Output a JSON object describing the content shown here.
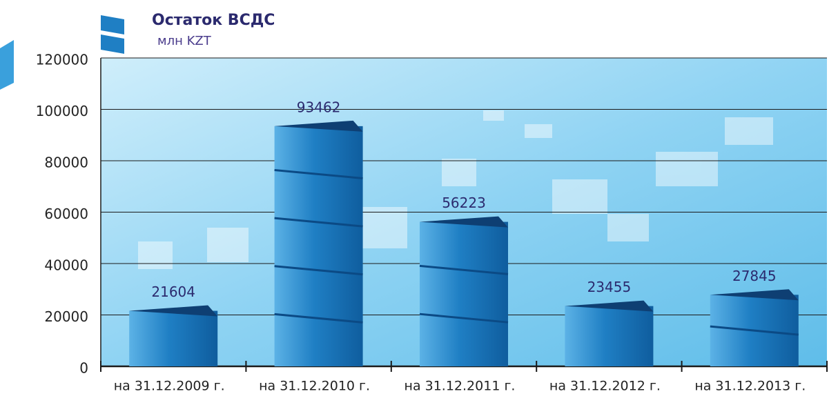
{
  "chart_data": {
    "type": "bar",
    "title": "Остаток ВСДС",
    "subtitle": "млн KZT",
    "categories": [
      "на 31.12.2009 г.",
      "на 31.12.2010 г.",
      "на 31.12.2011 г.",
      "на 31.12.2012 г.",
      "на 31.12.2013 г."
    ],
    "values": [
      21604,
      93462,
      56223,
      23455,
      27845
    ],
    "color": "#1f7fc4",
    "ylim": [
      0,
      120000
    ],
    "yticks": [
      0,
      20000,
      40000,
      60000,
      80000,
      100000,
      120000
    ],
    "grid": true
  }
}
